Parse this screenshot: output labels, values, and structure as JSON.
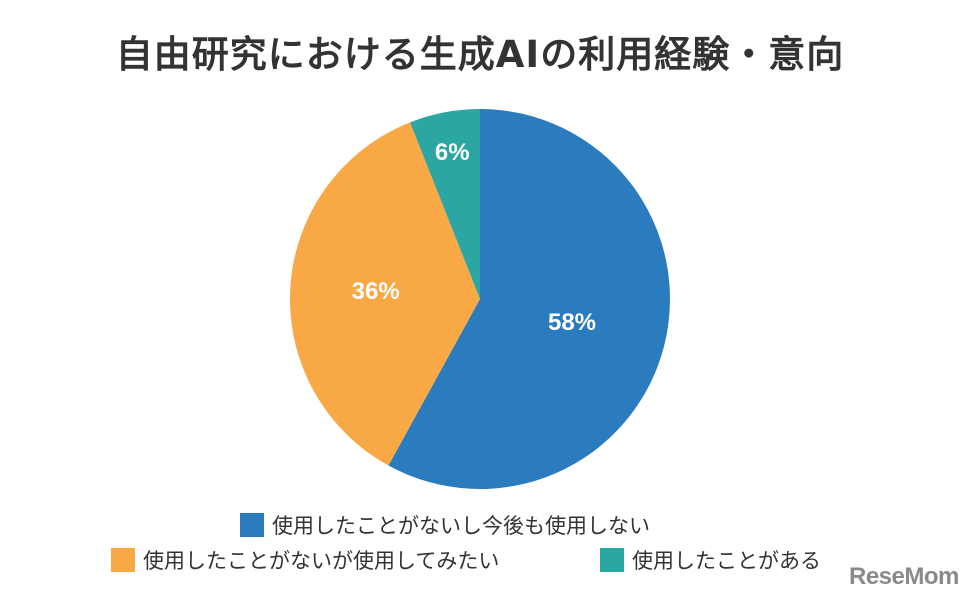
{
  "title": "自由研究における生成AIの利用経験・意向",
  "chart_data": {
    "type": "pie",
    "title": "自由研究における生成AIの利用経験・意向",
    "categories": [
      "使用したことがないし今後も使用しない",
      "使用したことがないが使用してみたい",
      "使用したことがある"
    ],
    "values": [
      58,
      36,
      6
    ],
    "labels": [
      "58%",
      "36%",
      "6%"
    ],
    "colors": [
      "#2b7bbf",
      "#f8a845",
      "#2ba6a3"
    ],
    "start_angle": "12 o'clock, clockwise",
    "legend_position": "bottom"
  },
  "legend": [
    {
      "label": "使用したことがないし今後も使用しない",
      "color": "#2b7bbf"
    },
    {
      "label": "使用したことがないが使用してみたい",
      "color": "#f8a845"
    },
    {
      "label": "使用したことがある",
      "color": "#2ba6a3"
    }
  ],
  "watermark": "ReseMom"
}
